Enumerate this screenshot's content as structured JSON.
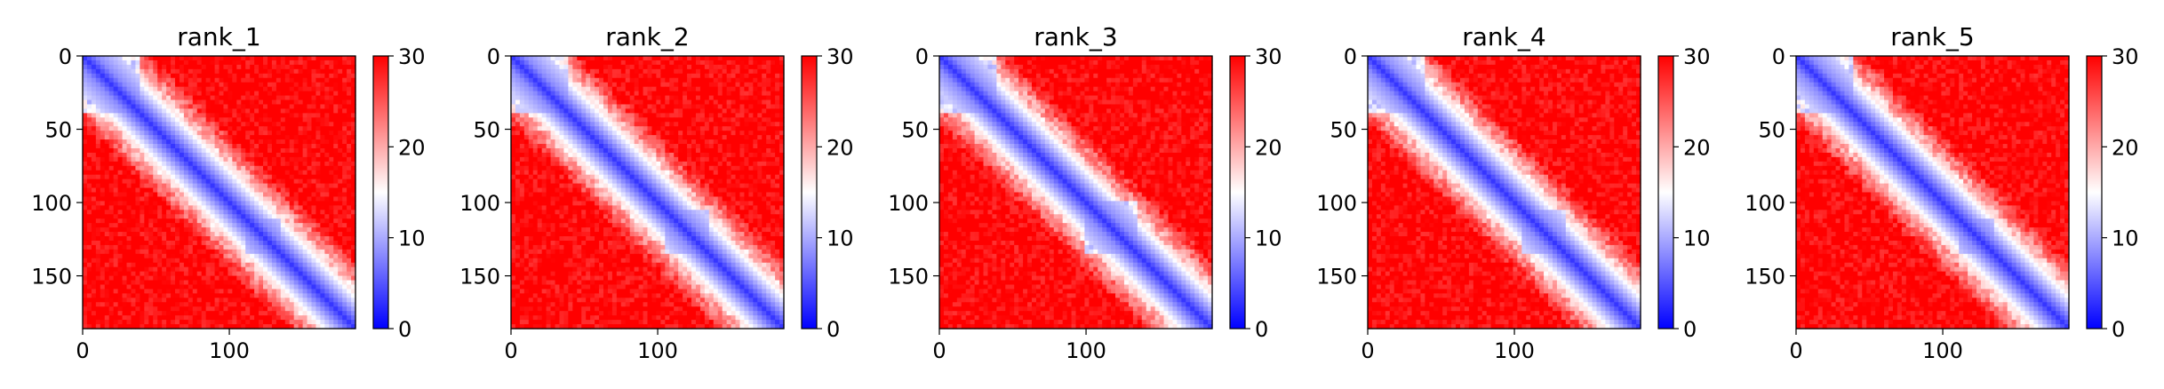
{
  "chart_data": [
    {
      "type": "heatmap",
      "title": "rank_1",
      "xlim": [
        0,
        186
      ],
      "ylim": [
        186,
        0
      ],
      "x_ticks": [
        0,
        100
      ],
      "y_ticks": [
        0,
        50,
        100,
        150
      ],
      "colorbar": {
        "min": 0,
        "max": 30,
        "ticks": [
          0,
          10,
          20,
          30
        ],
        "colormap": [
          "#0000ff",
          "#ffffff",
          "#ff0000"
        ]
      },
      "domains": [
        [
          0,
          40
        ],
        [
          110,
          135
        ]
      ]
    },
    {
      "type": "heatmap",
      "title": "rank_2",
      "xlim": [
        0,
        186
      ],
      "ylim": [
        186,
        0
      ],
      "x_ticks": [
        0,
        100
      ],
      "y_ticks": [
        0,
        50,
        100,
        150
      ],
      "colorbar": {
        "min": 0,
        "max": 30,
        "ticks": [
          0,
          10,
          20,
          30
        ],
        "colormap": [
          "#0000ff",
          "#ffffff",
          "#ff0000"
        ]
      },
      "domains": [
        [
          0,
          40
        ],
        [
          105,
          135
        ]
      ]
    },
    {
      "type": "heatmap",
      "title": "rank_3",
      "xlim": [
        0,
        186
      ],
      "ylim": [
        186,
        0
      ],
      "x_ticks": [
        0,
        100
      ],
      "y_ticks": [
        0,
        50,
        100,
        150
      ],
      "colorbar": {
        "min": 0,
        "max": 30,
        "ticks": [
          0,
          10,
          20,
          30
        ],
        "colormap": [
          "#0000ff",
          "#ffffff",
          "#ff0000"
        ]
      },
      "domains": [
        [
          0,
          40
        ],
        [
          100,
          135
        ]
      ]
    },
    {
      "type": "heatmap",
      "title": "rank_4",
      "xlim": [
        0,
        186
      ],
      "ylim": [
        186,
        0
      ],
      "x_ticks": [
        0,
        100
      ],
      "y_ticks": [
        0,
        50,
        100,
        150
      ],
      "colorbar": {
        "min": 0,
        "max": 30,
        "ticks": [
          0,
          10,
          20,
          30
        ],
        "colormap": [
          "#0000ff",
          "#ffffff",
          "#ff0000"
        ]
      },
      "domains": [
        [
          0,
          40
        ],
        [
          105,
          135
        ]
      ]
    },
    {
      "type": "heatmap",
      "title": "rank_5",
      "xlim": [
        0,
        186
      ],
      "ylim": [
        186,
        0
      ],
      "x_ticks": [
        0,
        100
      ],
      "y_ticks": [
        0,
        50,
        100,
        150
      ],
      "colorbar": {
        "min": 0,
        "max": 30,
        "ticks": [
          0,
          10,
          20,
          30
        ],
        "colormap": [
          "#0000ff",
          "#ffffff",
          "#ff0000"
        ]
      },
      "domains": [
        [
          0,
          40
        ],
        [
          110,
          135
        ]
      ]
    }
  ]
}
